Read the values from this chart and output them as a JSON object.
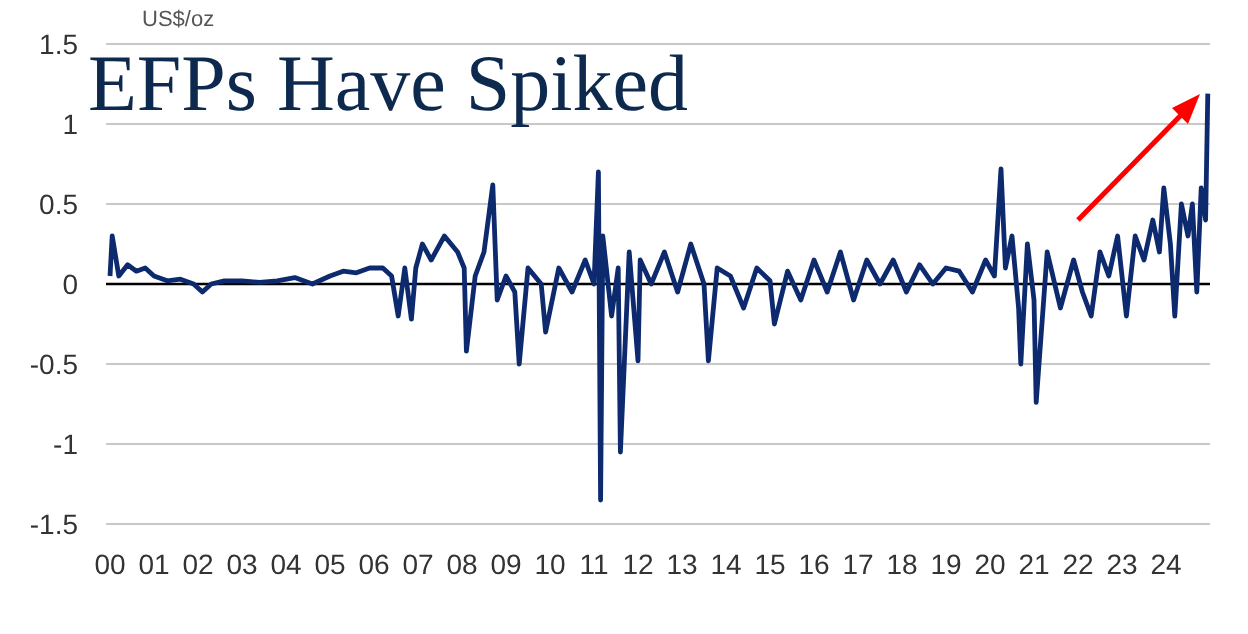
{
  "chart_data": {
    "type": "line",
    "title": "EFPs Have Spiked",
    "ylabel": "US$/oz",
    "x": [
      2000,
      2000.05,
      2000.2,
      2000.4,
      2000.6,
      2000.8,
      2001,
      2001.3,
      2001.6,
      2001.9,
      2002.1,
      2002.3,
      2002.6,
      2003,
      2003.4,
      2003.8,
      2004.2,
      2004.6,
      2005,
      2005.3,
      2005.6,
      2005.9,
      2006.2,
      2006.4,
      2006.55,
      2006.7,
      2006.85,
      2006.95,
      2007.1,
      2007.3,
      2007.6,
      2007.9,
      2008.05,
      2008.1,
      2008.3,
      2008.5,
      2008.7,
      2008.8,
      2009,
      2009.2,
      2009.3,
      2009.5,
      2009.8,
      2009.9,
      2010.2,
      2010.5,
      2010.8,
      2011,
      2011.1,
      2011.15,
      2011.2,
      2011.4,
      2011.55,
      2011.6,
      2011.8,
      2012,
      2012.05,
      2012.3,
      2012.6,
      2012.9,
      2013.2,
      2013.5,
      2013.6,
      2013.8,
      2014.1,
      2014.4,
      2014.7,
      2015,
      2015.1,
      2015.4,
      2015.7,
      2016,
      2016.3,
      2016.6,
      2016.9,
      2017.2,
      2017.5,
      2017.8,
      2018.1,
      2018.4,
      2018.7,
      2019,
      2019.3,
      2019.6,
      2019.9,
      2020.1,
      2020.25,
      2020.35,
      2020.5,
      2020.65,
      2020.7,
      2020.85,
      2021,
      2021.05,
      2021.3,
      2021.6,
      2021.9,
      2022.1,
      2022.3,
      2022.5,
      2022.7,
      2022.9,
      2023.1,
      2023.3,
      2023.5,
      2023.7,
      2023.85,
      2023.95,
      2024.1,
      2024.2,
      2024.35,
      2024.5,
      2024.6,
      2024.7,
      2024.8,
      2024.9,
      2024.95
    ],
    "values": [
      0.05,
      0.3,
      0.05,
      0.12,
      0.08,
      0.1,
      0.05,
      0.02,
      0.03,
      0.0,
      -0.05,
      0.0,
      0.02,
      0.02,
      0.01,
      0.02,
      0.04,
      0.0,
      0.05,
      0.08,
      0.07,
      0.1,
      0.1,
      0.05,
      -0.2,
      0.1,
      -0.22,
      0.1,
      0.25,
      0.15,
      0.3,
      0.2,
      0.1,
      -0.42,
      0.05,
      0.2,
      0.62,
      -0.1,
      0.05,
      -0.05,
      -0.5,
      0.1,
      0.0,
      -0.3,
      0.1,
      -0.05,
      0.15,
      0.0,
      0.7,
      -1.35,
      0.3,
      -0.2,
      0.1,
      -1.05,
      0.2,
      -0.48,
      0.15,
      0.0,
      0.2,
      -0.05,
      0.25,
      0.0,
      -0.48,
      0.1,
      0.05,
      -0.15,
      0.1,
      0.02,
      -0.25,
      0.08,
      -0.1,
      0.15,
      -0.05,
      0.2,
      -0.1,
      0.15,
      0.0,
      0.15,
      -0.05,
      0.12,
      0.0,
      0.1,
      0.08,
      -0.05,
      0.15,
      0.05,
      0.72,
      0.1,
      0.3,
      -0.15,
      -0.5,
      0.25,
      -0.1,
      -0.74,
      0.2,
      -0.15,
      0.15,
      -0.05,
      -0.2,
      0.2,
      0.05,
      0.3,
      -0.2,
      0.3,
      0.15,
      0.4,
      0.2,
      0.6,
      0.25,
      -0.2,
      0.5,
      0.3,
      0.5,
      -0.05,
      0.6,
      0.4,
      1.19
    ],
    "color": "#0d2a6e",
    "ylim": [
      -1.5,
      1.5
    ],
    "yticks": [
      -1.5,
      -1,
      -0.5,
      0,
      0.5,
      1,
      1.5
    ],
    "grid": "y",
    "xlim": [
      2000,
      2025
    ],
    "xticks": [
      {
        "value": 2000,
        "label": "00"
      },
      {
        "value": 2001,
        "label": "01"
      },
      {
        "value": 2002,
        "label": "02"
      },
      {
        "value": 2003,
        "label": "03"
      },
      {
        "value": 2004,
        "label": "04"
      },
      {
        "value": 2005,
        "label": "05"
      },
      {
        "value": 2006,
        "label": "06"
      },
      {
        "value": 2007,
        "label": "07"
      },
      {
        "value": 2008,
        "label": "08"
      },
      {
        "value": 2009,
        "label": "09"
      },
      {
        "value": 2010,
        "label": "10"
      },
      {
        "value": 2011,
        "label": "11"
      },
      {
        "value": 2012,
        "label": "12"
      },
      {
        "value": 2013,
        "label": "13"
      },
      {
        "value": 2014,
        "label": "14"
      },
      {
        "value": 2015,
        "label": "15"
      },
      {
        "value": 2016,
        "label": "16"
      },
      {
        "value": 2017,
        "label": "17"
      },
      {
        "value": 2018,
        "label": "18"
      },
      {
        "value": 2019,
        "label": "19"
      },
      {
        "value": 2020,
        "label": "20"
      },
      {
        "value": 2021,
        "label": "21"
      },
      {
        "value": 2022,
        "label": "22"
      },
      {
        "value": 2023,
        "label": "23"
      },
      {
        "value": 2024,
        "label": "24"
      }
    ],
    "ref_lines": [
      {
        "axis": "y",
        "value": 0,
        "color": "#000000"
      }
    ]
  }
}
